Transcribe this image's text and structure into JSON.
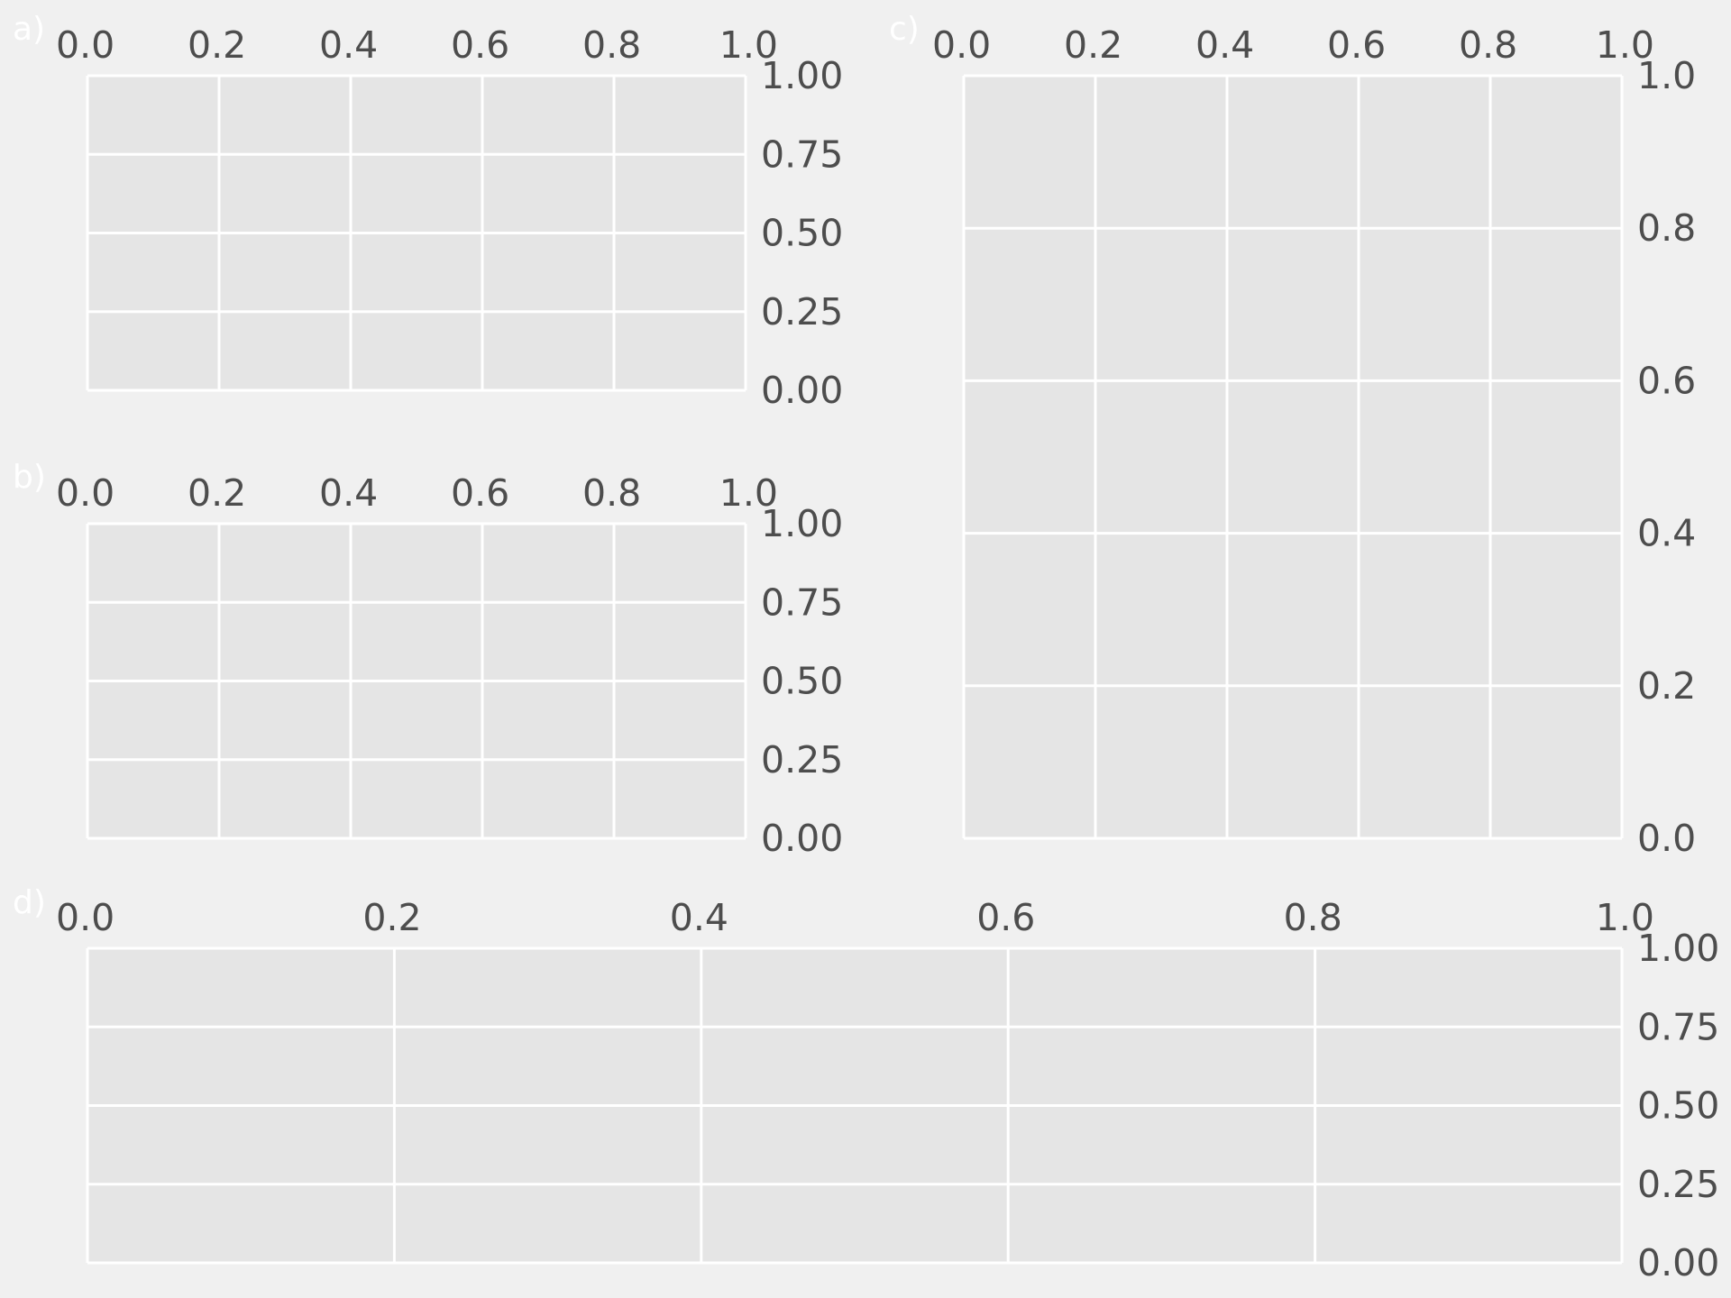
{
  "figure": {
    "background": "#f0f0f0",
    "axes_facecolor": "#e5e5e5",
    "grid_color": "#ffffff",
    "tick_label_color": "#4d4d4d",
    "panel_label_color": "#ffffff"
  },
  "chart_data": [
    {
      "panel": "a)",
      "type": "scatter",
      "x": [],
      "y": [],
      "title": "",
      "xlabel": "",
      "ylabel": "",
      "xlim": [
        0,
        1
      ],
      "ylim": [
        0,
        1
      ],
      "x_ticks": [
        "0.0",
        "0.2",
        "0.4",
        "0.6",
        "0.8",
        "1.0"
      ],
      "y_ticks": [
        "0.00",
        "0.25",
        "0.50",
        "0.75",
        "1.00"
      ],
      "x_axis_position": "top",
      "y_axis_position": "right",
      "grid": true
    },
    {
      "panel": "b)",
      "type": "scatter",
      "x": [],
      "y": [],
      "title": "",
      "xlabel": "",
      "ylabel": "",
      "xlim": [
        0,
        1
      ],
      "ylim": [
        0,
        1
      ],
      "x_ticks": [
        "0.0",
        "0.2",
        "0.4",
        "0.6",
        "0.8",
        "1.0"
      ],
      "y_ticks": [
        "0.00",
        "0.25",
        "0.50",
        "0.75",
        "1.00"
      ],
      "x_axis_position": "top",
      "y_axis_position": "right",
      "grid": true
    },
    {
      "panel": "c)",
      "type": "scatter",
      "x": [],
      "y": [],
      "title": "",
      "xlabel": "",
      "ylabel": "",
      "xlim": [
        0,
        1
      ],
      "ylim": [
        0,
        1
      ],
      "x_ticks": [
        "0.0",
        "0.2",
        "0.4",
        "0.6",
        "0.8",
        "1.0"
      ],
      "y_ticks": [
        "0.0",
        "0.2",
        "0.4",
        "0.6",
        "0.8",
        "1.0"
      ],
      "x_axis_position": "top",
      "y_axis_position": "right",
      "grid": true
    },
    {
      "panel": "d)",
      "type": "scatter",
      "x": [],
      "y": [],
      "title": "",
      "xlabel": "",
      "ylabel": "",
      "xlim": [
        0,
        1
      ],
      "ylim": [
        0,
        1
      ],
      "x_ticks": [
        "0.0",
        "0.2",
        "0.4",
        "0.6",
        "0.8",
        "1.0"
      ],
      "y_ticks": [
        "0.00",
        "0.25",
        "0.50",
        "0.75",
        "1.00"
      ],
      "x_axis_position": "top",
      "y_axis_position": "right",
      "grid": true
    }
  ]
}
